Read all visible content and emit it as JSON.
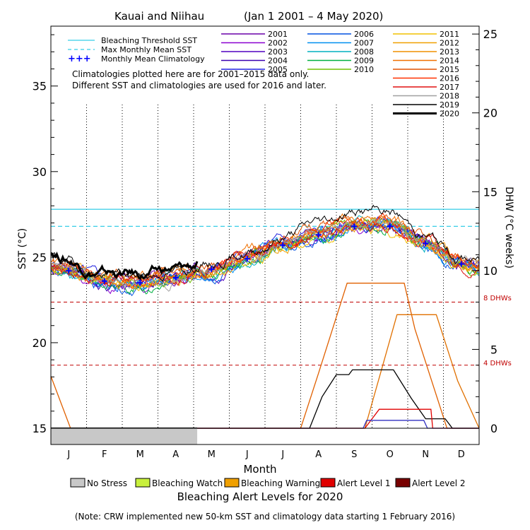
{
  "chart_data": {
    "type": "line",
    "title": "Kauai and Niihau",
    "date_range": "(Jan 1 2001 – 4 May 2020)",
    "xlabel": "Month",
    "ylabel_left": "SST (°C)",
    "ylabel_right": "DHW (°C weeks)",
    "ylim_left": [
      15,
      38.5
    ],
    "ylim_right": [
      0,
      25.5
    ],
    "yticks_left": [
      "15",
      "20",
      "25",
      "30",
      "35"
    ],
    "yticks_right": [
      "0",
      "5",
      "10",
      "15",
      "20",
      "25"
    ],
    "months": [
      "J",
      "F",
      "M",
      "A",
      "M",
      "J",
      "J",
      "A",
      "S",
      "O",
      "N",
      "D"
    ],
    "bleaching_threshold_sst": 27.8,
    "max_monthly_mean_sst": 26.8,
    "dhw_reference_lines": [
      {
        "label": "8 DHWs",
        "value": 8
      },
      {
        "label": "4 DHWs",
        "value": 4
      }
    ],
    "notes": [
      "Climatologies plotted here are for 2001–2015 data only.",
      "Different SST and climatologies are used for 2016 and later."
    ],
    "legend_reference": [
      {
        "name": "Bleaching Threshold SST",
        "color": "#00c0e0",
        "style": "solid"
      },
      {
        "name": "Max Monthly Mean SST",
        "color": "#00c0e0",
        "style": "dashed"
      },
      {
        "name": "Monthly Mean Climatology",
        "color": "#0000ff",
        "style": "cross"
      }
    ],
    "climatology": {
      "x": [
        0.5,
        1.5,
        2.5,
        3.5,
        4.5,
        5.5,
        6.5,
        7.5,
        8.5,
        9.5,
        10.5,
        11.5
      ],
      "values": [
        24.2,
        23.6,
        23.5,
        23.8,
        24.3,
        24.9,
        25.7,
        26.3,
        26.8,
        26.8,
        25.8,
        24.6
      ]
    },
    "series": [
      {
        "name": "2001",
        "color": "#6a00a8",
        "bias": 0.0,
        "seed": 1
      },
      {
        "name": "2002",
        "color": "#8a00d0",
        "bias": -0.2,
        "seed": 2
      },
      {
        "name": "2003",
        "color": "#5000c0",
        "bias": 0.1,
        "seed": 3
      },
      {
        "name": "2004",
        "color": "#3a00b0",
        "bias": -0.1,
        "seed": 4
      },
      {
        "name": "2005",
        "color": "#2020e0",
        "bias": 0.2,
        "seed": 5
      },
      {
        "name": "2006",
        "color": "#0050e0",
        "bias": -0.3,
        "seed": 6
      },
      {
        "name": "2007",
        "color": "#0090f0",
        "bias": 0.0,
        "seed": 7
      },
      {
        "name": "2008",
        "color": "#00b0c0",
        "bias": -0.2,
        "seed": 8
      },
      {
        "name": "2009",
        "color": "#00b040",
        "bias": -0.4,
        "seed": 9
      },
      {
        "name": "2010",
        "color": "#70c000",
        "bias": 0.1,
        "seed": 10
      },
      {
        "name": "2011",
        "color": "#f0c000",
        "bias": -0.3,
        "seed": 11
      },
      {
        "name": "2012",
        "color": "#f0a000",
        "bias": 0.0,
        "seed": 12
      },
      {
        "name": "2013",
        "color": "#f09000",
        "bias": 0.2,
        "seed": 13
      },
      {
        "name": "2014",
        "color": "#f07000",
        "bias": 0.5,
        "seed": 14
      },
      {
        "name": "2015",
        "color": "#e05000",
        "bias": 0.6,
        "seed": 15
      },
      {
        "name": "2016",
        "color": "#ff3000",
        "bias": 0.3,
        "seed": 16
      },
      {
        "name": "2017",
        "color": "#e01010",
        "bias": 0.2,
        "seed": 17
      },
      {
        "name": "2018",
        "color": "#a0a0a0",
        "bias": 0.0,
        "seed": 18
      },
      {
        "name": "2019",
        "color": "#000000",
        "bias": 0.8,
        "seed": 19
      },
      {
        "name": "2020",
        "color": "#000000",
        "bias": 1.0,
        "seed": 20,
        "end_month": 4.1
      }
    ],
    "dhw_series": [
      {
        "name": "2015 DHW",
        "color": "#e06000",
        "x": [
          0,
          0.55,
          7.0,
          7.5,
          8.3,
          9.9,
          10.2,
          11.1,
          11.4,
          12
        ],
        "values": [
          3.3,
          0,
          0,
          3.5,
          9.2,
          9.2,
          6.3,
          0,
          0,
          0
        ]
      },
      {
        "name": "2014 DHW",
        "color": "#e07000",
        "x": [
          0,
          8.8,
          9.3,
          9.7,
          10.8,
          11.4,
          12
        ],
        "values": [
          0,
          0,
          4.0,
          7.2,
          7.2,
          3.0,
          0
        ]
      },
      {
        "name": "2019 DHW",
        "color": "#000000",
        "x": [
          0,
          7.25,
          7.6,
          8.0,
          8.35,
          8.45,
          9.6,
          10.1,
          10.5,
          11.05,
          11.25,
          12
        ],
        "values": [
          0,
          0,
          2.0,
          3.4,
          3.4,
          3.7,
          3.7,
          1.9,
          0.6,
          0.6,
          0,
          0
        ]
      },
      {
        "name": "2017 DHW",
        "color": "#e00000",
        "x": [
          0,
          8.8,
          9.2,
          10.65,
          10.7,
          12
        ],
        "values": [
          0,
          0,
          1.2,
          1.2,
          0,
          0
        ]
      },
      {
        "name": "2004 DHW",
        "color": "#3030c0",
        "x": [
          0,
          8.75,
          8.85,
          10.45,
          10.55,
          12
        ],
        "values": [
          0,
          0,
          0.5,
          0.5,
          0,
          0
        ]
      },
      {
        "name": "2020 DHW",
        "color": "#000000",
        "x": [
          0,
          4.1
        ],
        "values": [
          0,
          0
        ]
      }
    ],
    "stress_2020": {
      "level": "No Stress",
      "through_month": 4.1
    }
  },
  "alert_legend": {
    "title": "Bleaching Alert Levels for 2020",
    "items": [
      {
        "label": "No Stress",
        "color": "#c8c8c8"
      },
      {
        "label": "Bleaching Watch",
        "color": "#c8f03c"
      },
      {
        "label": "Bleaching Warning",
        "color": "#f0a000"
      },
      {
        "label": "Alert Level 1",
        "color": "#e00000"
      },
      {
        "label": "Alert Level 2",
        "color": "#780000"
      }
    ]
  },
  "footnote": "(Note: CRW implemented new 50-km SST and climatology data starting 1 February 2016)"
}
